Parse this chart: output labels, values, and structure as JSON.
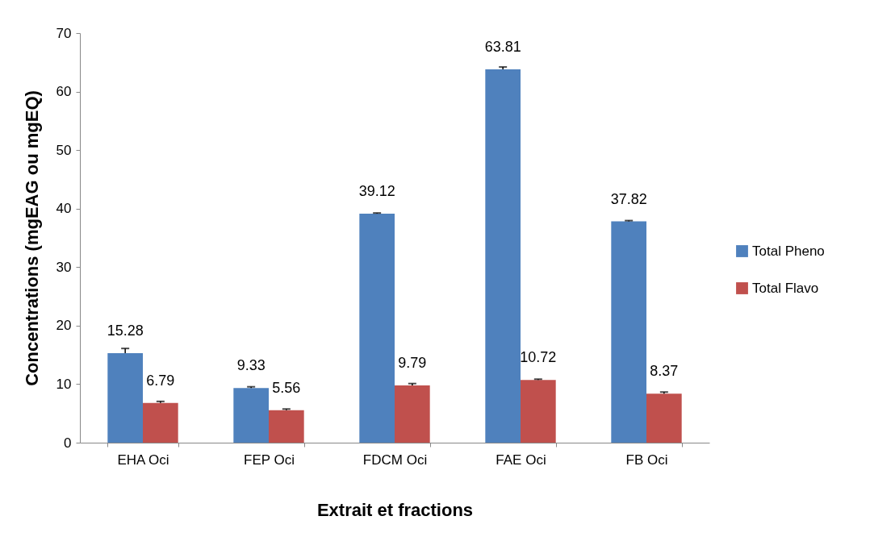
{
  "chart_data": {
    "type": "bar",
    "xlabel": "Extrait et fractions",
    "ylabel": "Concentrations (mgEAG ou mgEQ)",
    "categories": [
      "EHA Oci",
      "FEP Oci",
      "FDCM Oci",
      "FAE Oci",
      "FB Oci"
    ],
    "series": [
      {
        "name": "Total Pheno",
        "color": "#4f81bd",
        "values": [
          15.28,
          9.33,
          39.12,
          63.81,
          37.82
        ],
        "errors": [
          [
            15.28,
            16.1
          ],
          [
            9.33,
            9.55
          ],
          [
            39.12,
            39.25
          ],
          [
            63.81,
            64.2
          ],
          [
            37.82,
            37.95
          ]
        ]
      },
      {
        "name": "Total Flavo",
        "color": "#c0504d",
        "values": [
          6.79,
          5.56,
          9.79,
          10.72,
          8.37
        ],
        "errors": [
          [
            6.79,
            7.05
          ],
          [
            5.56,
            5.75
          ],
          [
            9.79,
            10.1
          ],
          [
            10.72,
            10.85
          ],
          [
            8.37,
            8.65
          ]
        ]
      }
    ],
    "ylim": [
      0,
      70
    ],
    "yticks": [
      0,
      10,
      20,
      30,
      40,
      50,
      60,
      70
    ],
    "grid": false,
    "legend": "right",
    "data_labels": true
  }
}
